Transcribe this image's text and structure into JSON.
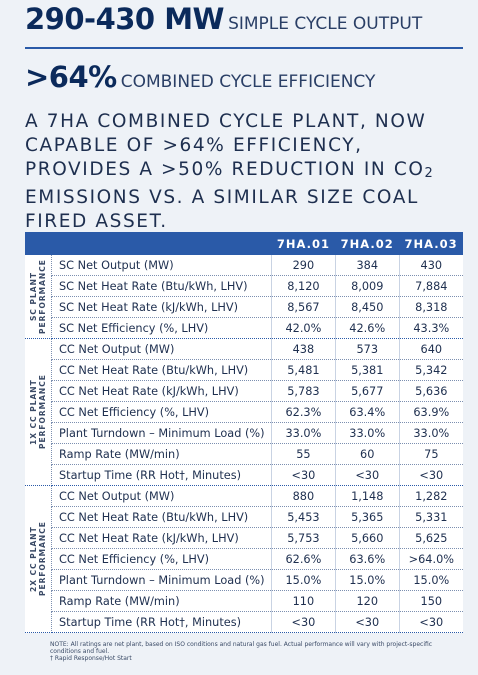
{
  "headline": [
    {
      "value": "290-430 MW",
      "label": "SIMPLE CYCLE OUTPUT"
    },
    {
      "value": ">64%",
      "label": "COMBINED CYCLE EFFICIENCY"
    }
  ],
  "statement": {
    "before": "A 7HA COMBINED CYCLE PLANT, NOW CAPABLE OF >64% EFFICIENCY, PROVIDES A >50% REDUCTION IN CO",
    "subscript": "2",
    "after": " EMISSIONS VS. A SIMILAR SIZE COAL FIRED ASSET."
  },
  "table": {
    "columns": [
      "7HA.01",
      "7HA.02",
      "7HA.03"
    ],
    "groups": [
      {
        "label": "SC PLANT PERFORMANCE",
        "rows": [
          [
            "SC Net Output (MW)",
            "290",
            "384",
            "430"
          ],
          [
            "SC Net Heat Rate (Btu/kWh, LHV)",
            "8,120",
            "8,009",
            "7,884"
          ],
          [
            "SC Net Heat Rate (kJ/kWh, LHV)",
            "8,567",
            "8,450",
            "8,318"
          ],
          [
            "SC Net Efficiency (%, LHV)",
            "42.0%",
            "42.6%",
            "43.3%"
          ]
        ]
      },
      {
        "label": "1X CC PLANT PERFORMANCE",
        "rows": [
          [
            "CC Net Output (MW)",
            "438",
            "573",
            "640"
          ],
          [
            "CC Net Heat Rate (Btu/kWh, LHV)",
            "5,481",
            "5,381",
            "5,342"
          ],
          [
            "CC Net Heat Rate (kJ/kWh, LHV)",
            "5,783",
            "5,677",
            "5,636"
          ],
          [
            "CC Net Efficiency (%, LHV)",
            "62.3%",
            "63.4%",
            "63.9%"
          ],
          [
            "Plant Turndown – Minimum Load (%)",
            "33.0%",
            "33.0%",
            "33.0%"
          ],
          [
            "Ramp Rate (MW/min)",
            "55",
            "60",
            "75"
          ],
          [
            "Startup Time (RR Hot†, Minutes)",
            "<30",
            "<30",
            "<30"
          ]
        ]
      },
      {
        "label": "2X CC PLANT PERFORMANCE",
        "rows": [
          [
            "CC Net Output (MW)",
            "880",
            "1,148",
            "1,282"
          ],
          [
            "CC Net Heat Rate (Btu/kWh, LHV)",
            "5,453",
            "5,365",
            "5,331"
          ],
          [
            "CC Net Heat Rate (kJ/kWh, LHV)",
            "5,753",
            "5,660",
            "5,625"
          ],
          [
            "CC Net Efficiency (%, LHV)",
            "62.6%",
            "63.6%",
            ">64.0%"
          ],
          [
            "Plant Turndown – Minimum Load (%)",
            "15.0%",
            "15.0%",
            "15.0%"
          ],
          [
            "Ramp Rate (MW/min)",
            "110",
            "120",
            "150"
          ],
          [
            "Startup Time (RR Hot†, Minutes)",
            "<30",
            "<30",
            "<30"
          ]
        ]
      }
    ]
  },
  "notes": [
    "NOTE: All ratings are net plant, based on ISO conditions and natural gas fuel. Actual performance will vary with project-specific conditions and fuel.",
    "† Rapid Response/Hot Start"
  ]
}
